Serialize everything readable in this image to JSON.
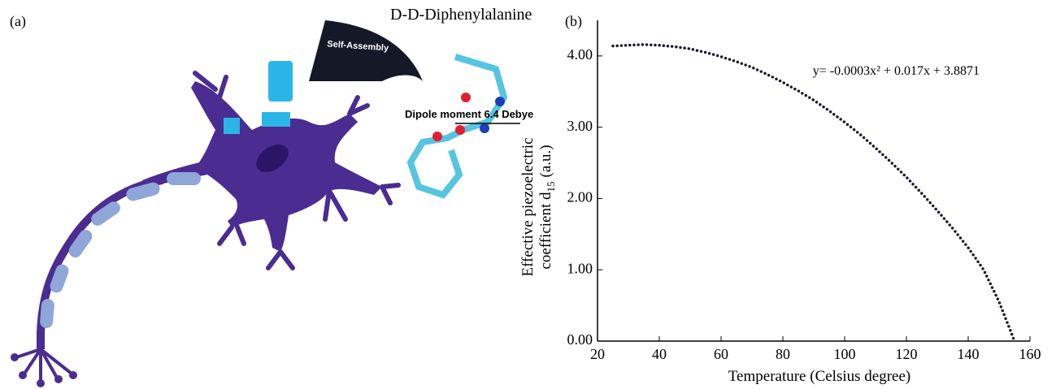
{
  "panel_a": {
    "label": "(a)",
    "molecule": "D-D-Diphenylalanine",
    "arrow_label": "Self-Assembly",
    "dipole": "Dipole moment 6.4 Debye"
  },
  "chart_data": {
    "type": "line",
    "panel_label": "(b)",
    "annotation": "y= -0.0003x² + 0.017x + 3.8871",
    "x_label": "Temperature (Celsius degree)",
    "y_label": {
      "line1": "Effective piezoelectric",
      "line2": "coefficient d",
      "subscript": "15",
      "unit": "(a.u.)"
    },
    "x": [
      25,
      30,
      35,
      40,
      45,
      50,
      55,
      60,
      65,
      70,
      75,
      80,
      85,
      90,
      95,
      100,
      105,
      110,
      115,
      120,
      125,
      130,
      135,
      140,
      145,
      150,
      155
    ],
    "values": [
      4.14,
      4.15,
      4.16,
      4.15,
      4.13,
      4.1,
      4.05,
      3.99,
      3.92,
      3.84,
      3.74,
      3.63,
      3.51,
      3.38,
      3.23,
      3.07,
      2.9,
      2.71,
      2.51,
      2.3,
      2.07,
      1.83,
      1.58,
      1.31,
      1.0,
      0.55,
      0.0
    ],
    "color": "#1a1a2e",
    "xlim": [
      20,
      160
    ],
    "xticks": [
      20,
      40,
      60,
      80,
      100,
      120,
      140,
      160
    ],
    "ylim": [
      0,
      4.5
    ],
    "yticks": [
      {
        "value": 0,
        "label": "0.00"
      },
      {
        "value": 1,
        "label": "1.00"
      },
      {
        "value": 2,
        "label": "2.00"
      },
      {
        "value": 3,
        "label": "3.00"
      },
      {
        "value": 4,
        "label": "4.00"
      }
    ]
  }
}
